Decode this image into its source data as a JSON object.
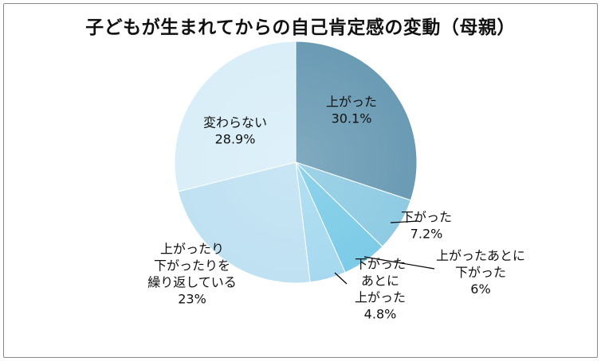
{
  "chart_data": {
    "type": "pie",
    "title": "子どもが生まれてからの自己肯定感の変動（母親）",
    "start_angle_deg": 0,
    "direction": "clockwise",
    "slices": [
      {
        "lines": [
          "上がった"
        ],
        "value_label": "30.1%",
        "value": 30.1,
        "color": "#6a9bb4"
      },
      {
        "lines": [
          "下がった"
        ],
        "value_label": "7.2%",
        "value": 7.2,
        "color": "#8ecbe3"
      },
      {
        "lines": [
          "上がったあとに",
          "下がった"
        ],
        "value_label": "6%",
        "value": 6.0,
        "color": "#7ccbe7"
      },
      {
        "lines": [
          "下がった",
          "あとに",
          "上がった"
        ],
        "value_label": "4.8%",
        "value": 4.8,
        "color": "#a6d9ef"
      },
      {
        "lines": [
          "上がったり",
          "下がったりを",
          "繰り返している"
        ],
        "value_label": "23%",
        "value": 23.0,
        "color": "#bfe1f2"
      },
      {
        "lines": [
          "変わらない"
        ],
        "value_label": "28.9%",
        "value": 28.9,
        "color": "#d9eef8"
      }
    ]
  }
}
